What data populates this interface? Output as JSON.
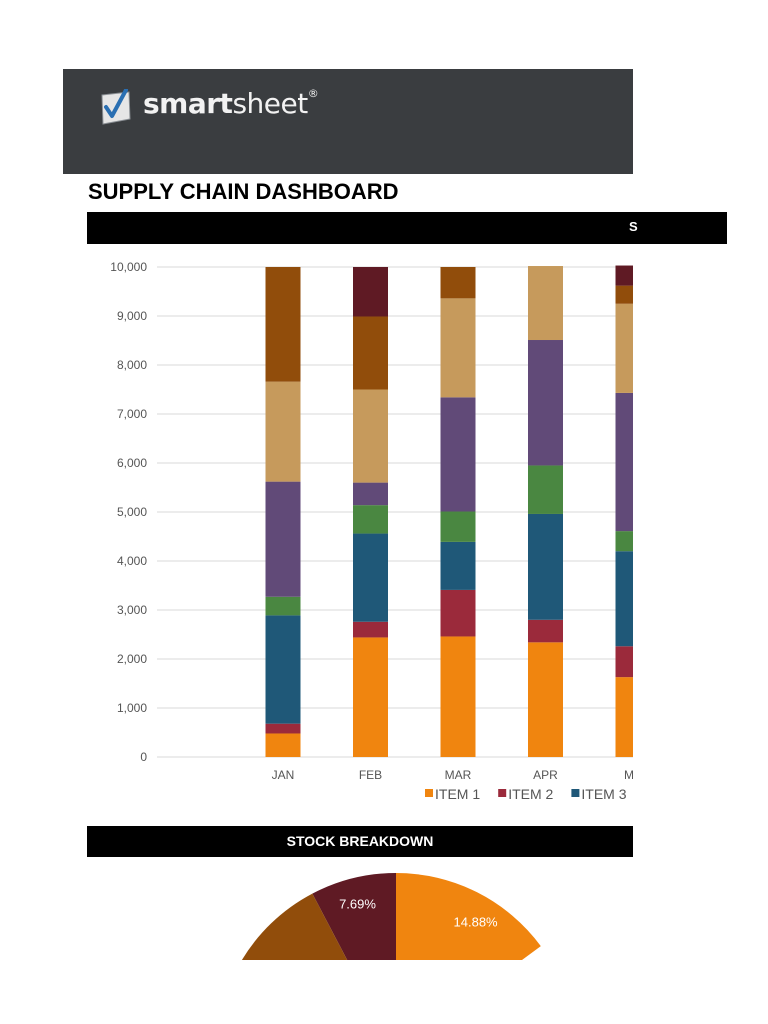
{
  "header": {
    "brand_bold": "smart",
    "brand_light": "sheet",
    "brand_mark": "®"
  },
  "page_title": "SUPPLY CHAIN DASHBOARD",
  "band_fragment": "S",
  "stock_title": "STOCK BREAKDOWN",
  "colors": {
    "item1": "#f0850f",
    "item2": "#9b2a3b",
    "item3": "#1f5878",
    "item4": "#4a8741",
    "item5": "#614a78",
    "item6": "#c69a5c",
    "item7": "#914d0b",
    "item8": "#5f1a24"
  },
  "chart_data": {
    "type": "bar",
    "stacked": true,
    "categories": [
      "JAN",
      "FEB",
      "MAR",
      "APR",
      "MA"
    ],
    "ylim": [
      0,
      10000
    ],
    "yticks": [
      "0",
      "1,000",
      "2,000",
      "3,000",
      "4,000",
      "5,000",
      "6,000",
      "7,000",
      "8,000",
      "9,000",
      "10,000"
    ],
    "grid": true,
    "legend_position": "bottom",
    "series": [
      {
        "name": "ITEM 1",
        "color_key": "item1",
        "values": [
          480,
          2440,
          2460,
          2340,
          1630
        ]
      },
      {
        "name": "ITEM 2",
        "color_key": "item2",
        "values": [
          200,
          320,
          950,
          460,
          630
        ]
      },
      {
        "name": "ITEM 3",
        "color_key": "item3",
        "values": [
          2210,
          1800,
          980,
          2160,
          1940
        ]
      },
      {
        "color_key": "item4",
        "values": [
          380,
          580,
          620,
          990,
          410
        ]
      },
      {
        "color_key": "item5",
        "values": [
          2350,
          460,
          2330,
          2560,
          2820
        ]
      },
      {
        "color_key": "item6",
        "values": [
          2040,
          1900,
          2020,
          1510,
          1820
        ]
      },
      {
        "color_key": "item7",
        "values": [
          2340,
          1490,
          640,
          0,
          370
        ]
      },
      {
        "color_key": "item8",
        "values": [
          0,
          1010,
          0,
          0,
          410
        ]
      }
    ]
  },
  "pie_data": {
    "type": "pie",
    "visible_labels": [
      {
        "text": "14.88%",
        "value": 14.88,
        "color_key": "item1"
      },
      {
        "text": "7.69%",
        "value": 7.69,
        "color_key": "item8"
      }
    ]
  }
}
